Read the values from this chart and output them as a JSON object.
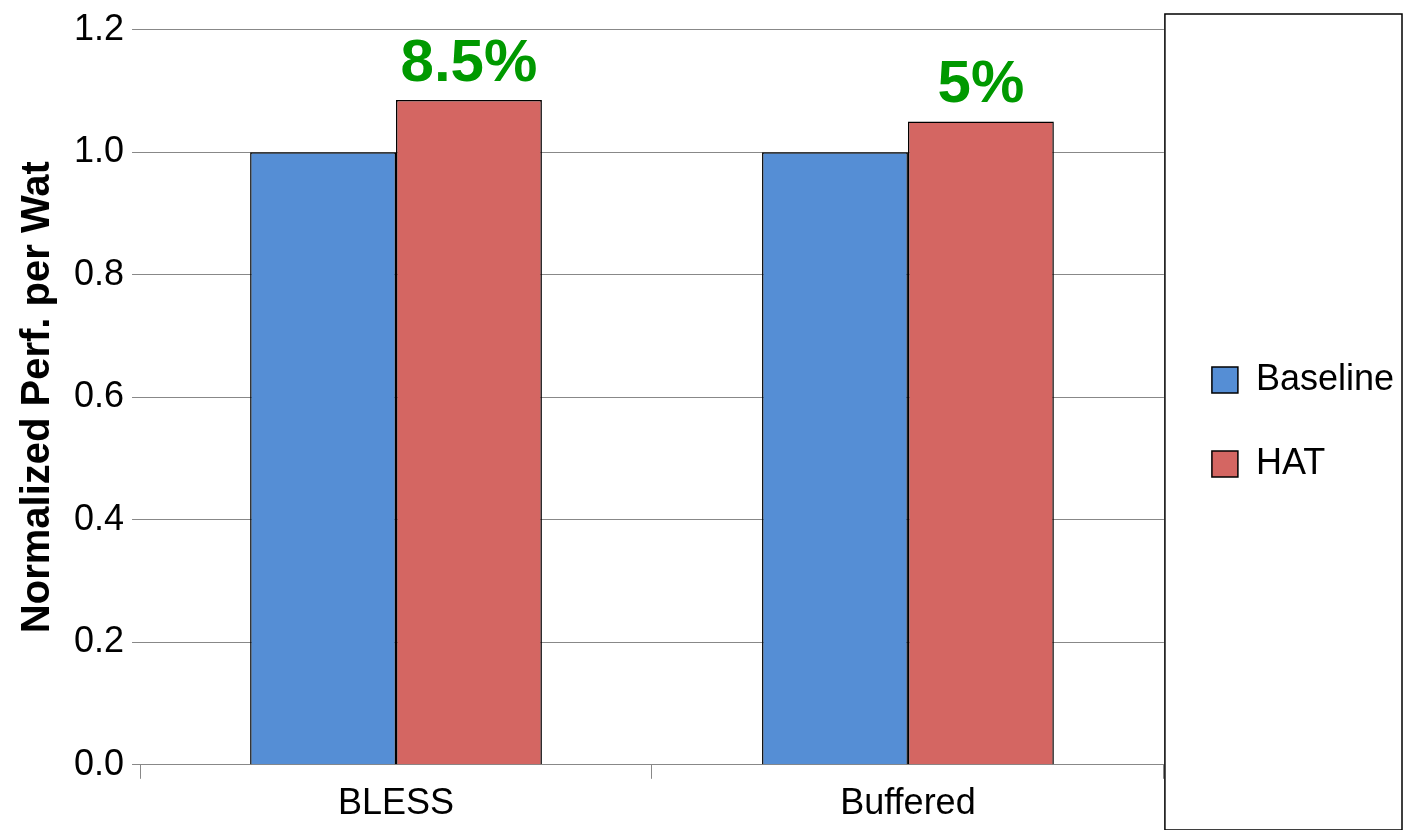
{
  "chart_data": {
    "type": "bar",
    "ylabel": "Normalized Perf. per Wat",
    "categories": [
      "BLESS",
      "Buffered"
    ],
    "series": [
      {
        "name": "Baseline",
        "color": "#558ed5",
        "values": [
          1.0,
          1.0
        ]
      },
      {
        "name": "HAT",
        "color": "#d46662",
        "values": [
          1.085,
          1.05
        ]
      }
    ],
    "ylim": [
      0,
      1.2
    ],
    "yticks": [
      {
        "value": 0,
        "label": "0.0"
      },
      {
        "value": 0.2,
        "label": "0.2"
      },
      {
        "value": 0.4,
        "label": "0.4"
      },
      {
        "value": 0.6,
        "label": "0.6"
      },
      {
        "value": 0.8,
        "label": "0.8"
      },
      {
        "value": 1.0,
        "label": "1.0"
      },
      {
        "value": 1.2,
        "label": "1.2"
      }
    ],
    "grid": "y",
    "legend": "right",
    "annotations": [
      {
        "text": "8.5%",
        "x": "BLESS",
        "y": 1.085
      },
      {
        "text": "5%",
        "x": "Buffered",
        "y": 1.05
      }
    ]
  }
}
